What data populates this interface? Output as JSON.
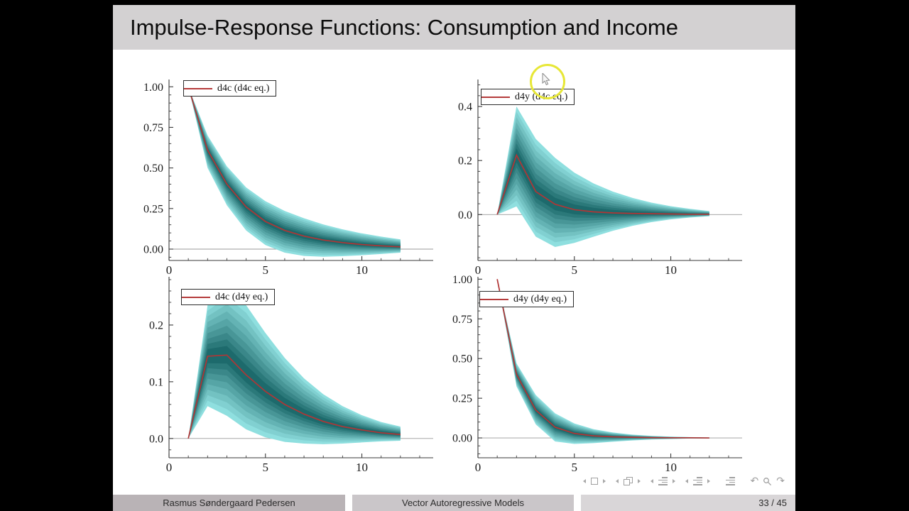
{
  "slide": {
    "title": "Impulse-Response Functions:  Consumption and Income",
    "footer": {
      "author": "Rasmus Søndergaard Pedersen",
      "presentation_title": "Vector Autoregressive Models",
      "page": "33 / 45"
    }
  },
  "colors": {
    "irf_line_red": "#b13535",
    "band_outer": "#8fdfdf",
    "band_inner": "#1d6a6c",
    "axis": "#3a3a3a",
    "zero_line": "#999999",
    "banner_bg": "#d3d1d2",
    "footer_author_bg": "#b9b3b6",
    "footer_title_bg": "#cac6c9",
    "footer_page_bg": "#d9d6d8",
    "nav_gray": "#a0a0a0",
    "highlight_ring_yellow": "#e7e736"
  },
  "nav": {
    "icons": [
      "prev-slide",
      "slide",
      "next-slide",
      "prev-frame",
      "frame",
      "next-frame",
      "prev-section",
      "section",
      "next-section",
      "prev-subsection",
      "subsection",
      "next-subsection",
      "appendix",
      "back",
      "search",
      "forward"
    ],
    "back_glyph": "↶",
    "forward_glyph": "↷"
  },
  "chart_data": [
    {
      "type": "line",
      "legend": "d4c (d4c eq.)",
      "x": [
        1,
        2,
        3,
        4,
        5,
        6,
        7,
        8,
        9,
        10,
        11,
        12
      ],
      "center": [
        1.0,
        0.61,
        0.4,
        0.26,
        0.17,
        0.115,
        0.08,
        0.056,
        0.04,
        0.028,
        0.02,
        0.014
      ],
      "upper": [
        1.0,
        0.7,
        0.51,
        0.38,
        0.295,
        0.235,
        0.19,
        0.152,
        0.122,
        0.097,
        0.077,
        0.06
      ],
      "lower": [
        1.0,
        0.5,
        0.27,
        0.115,
        0.025,
        -0.022,
        -0.042,
        -0.047,
        -0.044,
        -0.038,
        -0.03,
        -0.022
      ],
      "xlim": [
        0,
        13.7
      ],
      "ylim": [
        -0.07,
        1.045
      ],
      "xticks": {
        "values": [
          0,
          5,
          10
        ],
        "labels": [
          "0",
          "5",
          "10"
        ]
      },
      "yticks": {
        "values": [
          1.0,
          0.75,
          0.5,
          0.25,
          0.0
        ],
        "labels": [
          "1.00",
          "0.75",
          "0.50",
          "0.25",
          "0.00"
        ]
      },
      "zero_line": true,
      "grid": false,
      "legend_position": "top-left"
    },
    {
      "type": "line",
      "legend": "d4y (d4c eq.)",
      "x": [
        1,
        2,
        3,
        4,
        5,
        6,
        7,
        8,
        9,
        10,
        11,
        12
      ],
      "center": [
        0,
        0.22,
        0.085,
        0.038,
        0.018,
        0.01,
        0.006,
        0.004,
        0.003,
        0.002,
        0.001,
        0.001
      ],
      "upper": [
        0,
        0.4,
        0.28,
        0.21,
        0.155,
        0.115,
        0.085,
        0.062,
        0.044,
        0.031,
        0.021,
        0.013
      ],
      "lower": [
        0,
        0.03,
        -0.082,
        -0.12,
        -0.105,
        -0.082,
        -0.06,
        -0.042,
        -0.028,
        -0.018,
        -0.011,
        -0.006
      ],
      "xlim": [
        0,
        13.7
      ],
      "ylim": [
        -0.17,
        0.5
      ],
      "xticks": {
        "values": [
          0,
          5,
          10
        ],
        "labels": [
          "0",
          "5",
          "10"
        ]
      },
      "yticks": {
        "values": [
          0.4,
          0.2,
          0.0
        ],
        "labels": [
          "0.4",
          "0.2",
          "0.0"
        ]
      },
      "zero_line": true,
      "grid": false,
      "legend_position": "top-left"
    },
    {
      "type": "line",
      "legend": "d4c (d4y eq.)",
      "x": [
        1,
        2,
        3,
        4,
        5,
        6,
        7,
        8,
        9,
        10,
        11,
        12
      ],
      "center": [
        0,
        0.145,
        0.147,
        0.112,
        0.083,
        0.06,
        0.043,
        0.03,
        0.021,
        0.015,
        0.01,
        0.007
      ],
      "upper": [
        0,
        0.235,
        0.262,
        0.235,
        0.186,
        0.142,
        0.106,
        0.078,
        0.057,
        0.041,
        0.029,
        0.021
      ],
      "lower": [
        0,
        0.057,
        0.04,
        0.016,
        0.002,
        -0.006,
        -0.009,
        -0.01,
        -0.009,
        -0.007,
        -0.005,
        -0.004
      ],
      "xlim": [
        0,
        13.7
      ],
      "ylim": [
        -0.034,
        0.285
      ],
      "xticks": {
        "values": [
          0,
          5,
          10
        ],
        "labels": [
          "0",
          "5",
          "10"
        ]
      },
      "yticks": {
        "values": [
          0.2,
          0.1,
          0.0
        ],
        "labels": [
          "0.2",
          "0.1",
          "0.0"
        ]
      },
      "zero_line": true,
      "grid": false,
      "legend_position": "top-left"
    },
    {
      "type": "line",
      "legend": "d4y (d4y eq.)",
      "x": [
        1,
        2,
        3,
        4,
        5,
        6,
        7,
        8,
        9,
        10,
        11,
        12
      ],
      "center": [
        1.0,
        0.4,
        0.175,
        0.068,
        0.028,
        0.013,
        0.007,
        0.004,
        0.002,
        0.001,
        0.001,
        0.0
      ],
      "upper": [
        1.0,
        0.47,
        0.27,
        0.155,
        0.091,
        0.055,
        0.034,
        0.021,
        0.013,
        0.008,
        0.005,
        0.003
      ],
      "lower": [
        1.0,
        0.325,
        0.085,
        -0.022,
        -0.038,
        -0.033,
        -0.024,
        -0.016,
        -0.01,
        -0.007,
        -0.004,
        -0.003
      ],
      "xlim": [
        0,
        13.7
      ],
      "ylim": [
        -0.125,
        1.015
      ],
      "xticks": {
        "values": [
          0,
          5,
          10
        ],
        "labels": [
          "0",
          "5",
          "10"
        ]
      },
      "yticks": {
        "values": [
          1.0,
          0.75,
          0.5,
          0.25,
          0.0
        ],
        "labels": [
          "1.00",
          "0.75",
          "0.50",
          "0.25",
          "0.00"
        ]
      },
      "zero_line": true,
      "grid": false,
      "legend_position": "top-left"
    }
  ]
}
